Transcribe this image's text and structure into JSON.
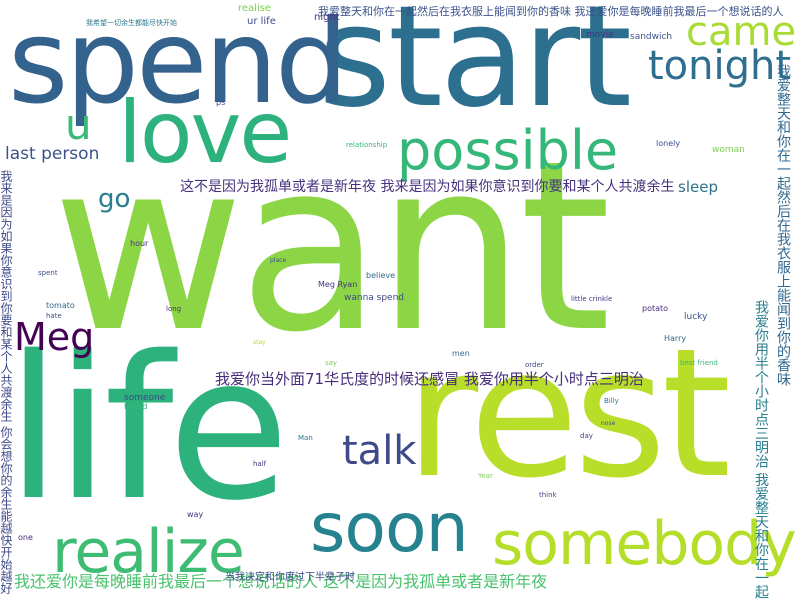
{
  "words": {
    "want": "want",
    "start": "start",
    "spend": "spend",
    "life": "life",
    "rest": "rest",
    "love": "love",
    "soon": "soon",
    "realize": "realize",
    "somebody": "somebody",
    "possible": "possible",
    "came": "came",
    "tonight": "tonight",
    "meg": "Meg",
    "talk": "talk",
    "u": "u",
    "go": "go",
    "last_person": "last person",
    "sleep": "sleep",
    "realise": "realise",
    "ur_life": "ur life",
    "night": "night",
    "movie": "movie",
    "sandwich": "sandwich",
    "harry": "Harry",
    "lonely": "lonely",
    "woman": "woman",
    "meg_ryan": "Meg Ryan",
    "believe": "believe",
    "wanna_spend": "wanna spend",
    "potato": "potato",
    "lucky": "lucky",
    "tomato": "tomato",
    "best_friend": "best friend",
    "billy": "Billy",
    "men": "men",
    "order": "order",
    "relationship": "relationship",
    "someone": "someone",
    "friend": "friend",
    "hour": "hour",
    "long": "long",
    "hate": "hate",
    "spent": "spent",
    "one": "one",
    "way": "way",
    "say": "say",
    "half": "half",
    "man": "Man",
    "think": "think",
    "year": "Year",
    "little_crinkle": "little crinkle",
    "ps": "ps",
    "day": "day",
    "nose": "nose",
    "stay": "stay",
    "place": "place"
  },
  "phrases": {
    "p1": "我爱整天和你在一起然后在我衣服上能闻到你的香味 我还爱你是每晚睡前我最后一个想说话的人",
    "p2": "这不是因为我孤单或者是新年夜 我来是因为如果你意识到你要和某个人共渡余生",
    "p3": "我爱你当外面71华氏度的时候还感冒 我爱你用半个小时点三明治",
    "p4": "我还爱你是每晚睡前我最后一个想说话的人 这不是因为我孤单或者是新年夜",
    "p5": "我爱整天和你在一起然后在我衣服上能闻到你的香味",
    "p6": "我爱你用半个小时点三明治 我爱整天和你在一起",
    "p7": "我来是因为如果你意识到你要和某个人共渡余生 你会想你的余生能越快开始越好",
    "p8": "当我决定和你度过下半辈子时",
    "p9": "我希望一切余生都能尽快开始"
  }
}
